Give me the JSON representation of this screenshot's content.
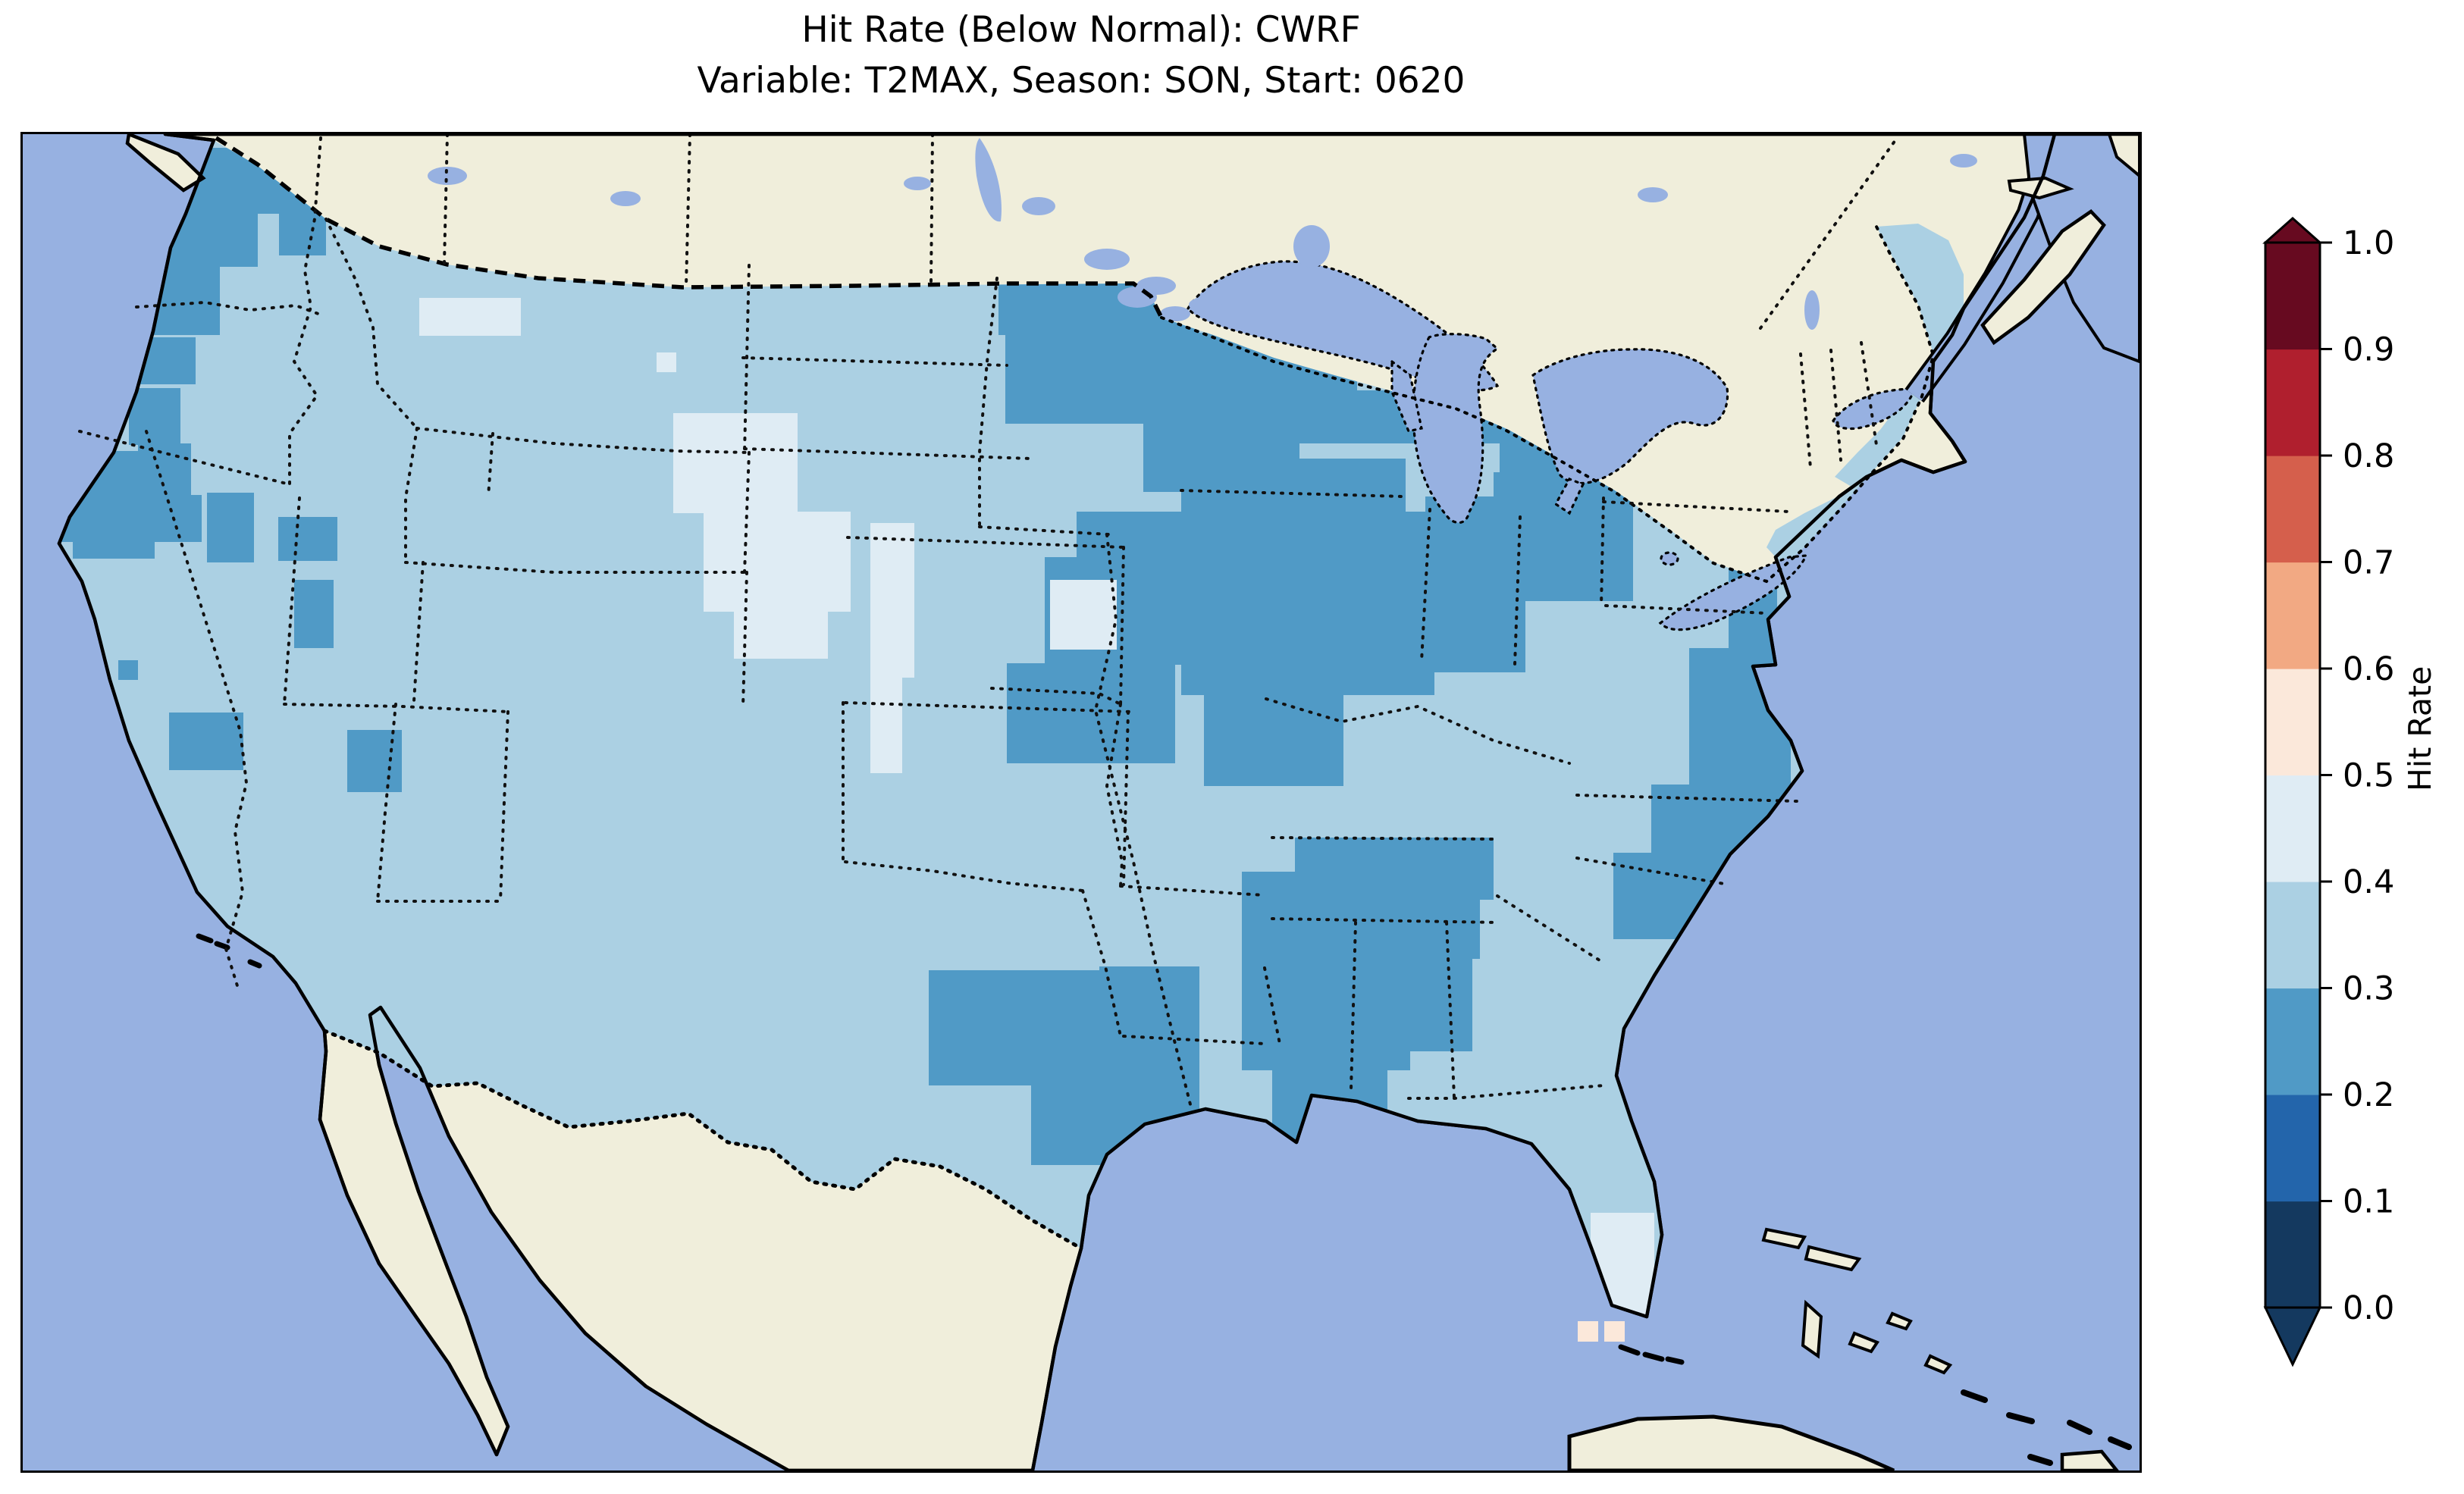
{
  "title": {
    "line1": "Hit Rate (Below Normal): CWRF",
    "line2": "Variable: T2MAX, Season: SON, Start: 0620"
  },
  "colorbar": {
    "label": "Hit Rate",
    "tick_labels": [
      "1.0",
      "0.9",
      "0.8",
      "0.7",
      "0.6",
      "0.5",
      "0.4",
      "0.3",
      "0.2",
      "0.1",
      "0.0"
    ],
    "bin_colors_low_to_high": [
      "#14395f",
      "#2365ab",
      "#509ac6",
      "#abd0e3",
      "#dfecf4",
      "#fbe8da",
      "#f2a983",
      "#d55f4c",
      "#b01f2e",
      "#670a20"
    ],
    "extend_under_color": "#14395f",
    "extend_over_color": "#670a20",
    "outline_color": "#000000"
  },
  "map": {
    "colors": {
      "ocean": "#97b1e1",
      "land_no_data": "#f0eedb",
      "lake": "#97b1e1",
      "coastline": "#000000",
      "state_border": "#111111",
      "base_data_bin": 3
    },
    "patches": [
      {
        "name": "pacific-northwest-coast",
        "bin": 2,
        "value": "0.2-0.3",
        "rects": [
          [
            195,
            18,
            150,
            75
          ],
          [
            185,
            90,
            125,
            85
          ],
          [
            160,
            175,
            100,
            90
          ],
          [
            148,
            268,
            80,
            62
          ]
        ]
      },
      {
        "name": "ne-washington-idaho-panhandle",
        "bin": 2,
        "value": "0.2-0.3",
        "rects": [
          [
            280,
            30,
            118,
            75
          ],
          [
            338,
            105,
            62,
            55
          ]
        ]
      },
      {
        "name": "oregon-coast",
        "bin": 2,
        "value": "0.2-0.3",
        "rects": [
          [
            140,
            335,
            68,
            75
          ],
          [
            152,
            408,
            70,
            85
          ]
        ]
      },
      {
        "name": "northern-california",
        "bin": 2,
        "value": "0.2-0.3",
        "rects": [
          [
            48,
            418,
            138,
            58
          ],
          [
            48,
            476,
            188,
            62
          ],
          [
            66,
            538,
            108,
            22
          ]
        ]
      },
      {
        "name": "ne-nevada",
        "bin": 2,
        "value": "0.2-0.3",
        "rects": [
          [
            243,
            473,
            62,
            92
          ]
        ]
      },
      {
        "name": "nw-utah",
        "bin": 2,
        "value": "0.2-0.3",
        "rects": [
          [
            337,
            505,
            78,
            58
          ]
        ]
      },
      {
        "name": "central-utah",
        "bin": 2,
        "value": "0.2-0.3",
        "rects": [
          [
            358,
            588,
            52,
            90
          ]
        ]
      },
      {
        "name": "southern-sierra-california",
        "bin": 2,
        "value": "0.2-0.3",
        "rects": [
          [
            193,
            763,
            98,
            76
          ]
        ]
      },
      {
        "name": "arizona-new-mexico",
        "bin": 2,
        "value": "0.2-0.3",
        "rects": [
          [
            428,
            786,
            72,
            82
          ]
        ]
      },
      {
        "name": "socal-single-cell",
        "bin": 2,
        "value": "0.2-0.3",
        "rects": [
          [
            126,
            694,
            26,
            26
          ]
        ]
      },
      {
        "name": "upper-midwest-blob",
        "bin": 2,
        "value": "0.2-0.3",
        "rects": [
          [
            1287,
            183,
            180,
            82
          ],
          [
            1296,
            262,
            368,
            120
          ],
          [
            1432,
            188,
            120,
            78
          ],
          [
            1560,
            252,
            200,
            92
          ],
          [
            1618,
            338,
            334,
            70
          ],
          [
            1478,
            340,
            206,
            132
          ],
          [
            1528,
            428,
            296,
            120
          ],
          [
            1948,
            328,
            172,
            120
          ],
          [
            1940,
            446,
            184,
            170
          ],
          [
            1390,
            498,
            464,
            124
          ],
          [
            1348,
            558,
            204,
            142
          ],
          [
            1298,
            698,
            222,
            132
          ],
          [
            1528,
            618,
            334,
            122
          ],
          [
            1558,
            738,
            184,
            122
          ],
          [
            1850,
            478,
            132,
            232
          ]
        ]
      },
      {
        "name": "kentucky-tennessee",
        "bin": 2,
        "value": "0.2-0.3",
        "rects": [
          [
            1678,
            928,
            262,
            82
          ],
          [
            1718,
            1008,
            204,
            80
          ]
        ]
      },
      {
        "name": "ne-texas-arkansas-louisiana",
        "bin": 2,
        "value": "0.2-0.3",
        "rects": [
          [
            1195,
            1103,
            272,
            152
          ],
          [
            1420,
            1098,
            132,
            222
          ],
          [
            1330,
            1248,
            162,
            112
          ]
        ]
      },
      {
        "name": "mississippi-alabama",
        "bin": 2,
        "value": "0.2-0.3",
        "rects": [
          [
            1608,
            973,
            222,
            262
          ],
          [
            1648,
            1233,
            152,
            112
          ],
          [
            1828,
            1058,
            84,
            152
          ]
        ]
      },
      {
        "name": "mid-atlantic-coast",
        "bin": 2,
        "value": "0.2-0.3",
        "rects": [
          [
            2250,
            572,
            64,
            112
          ],
          [
            2198,
            678,
            134,
            184
          ],
          [
            2148,
            858,
            184,
            142
          ],
          [
            2098,
            948,
            124,
            114
          ]
        ]
      },
      {
        "name": "montana-wyoming-light",
        "bin": 4,
        "value": "0.4-0.5",
        "rects": [
          [
            858,
            368,
            164,
            132
          ],
          [
            898,
            498,
            194,
            132
          ],
          [
            938,
            628,
            124,
            64
          ]
        ]
      },
      {
        "name": "north-montana-light",
        "bin": 4,
        "value": "0.4-0.5",
        "rects": [
          [
            523,
            216,
            134,
            50
          ]
        ]
      },
      {
        "name": "west-nebraska-strip",
        "bin": 4,
        "value": "0.4-0.5",
        "rects": [
          [
            1118,
            513,
            58,
            204
          ],
          [
            1118,
            715,
            42,
            128
          ]
        ]
      },
      {
        "name": "central-missouri-light",
        "bin": 4,
        "value": "0.4-0.5",
        "rects": [
          [
            1355,
            588,
            88,
            92
          ]
        ]
      },
      {
        "name": "south-florida-light",
        "bin": 4,
        "value": "0.4-0.5",
        "rects": [
          [
            2068,
            1423,
            84,
            142
          ]
        ]
      },
      {
        "name": "south-dakota-single-cell",
        "bin": 4,
        "value": "0.4-0.5",
        "rects": [
          [
            836,
            288,
            26,
            26
          ]
        ]
      },
      {
        "name": "florida-keys-peach-cells",
        "bin": 5,
        "value": "0.5-0.6",
        "rects": [
          [
            2051,
            1566,
            27,
            27
          ],
          [
            2086,
            1566,
            27,
            27
          ]
        ]
      }
    ]
  },
  "chart_data": {
    "type": "heatmap",
    "subtype": "choropleth_map",
    "title": "Hit Rate (Below Normal): CWRF",
    "subtitle": "Variable: T2MAX, Season: SON, Start: 0620",
    "model": "CWRF",
    "metric": "Hit Rate (Below Normal)",
    "variable": "T2MAX",
    "season": "SON",
    "start": "0620",
    "colorbar_label": "Hit Rate",
    "colorbar_range": [
      0.0,
      1.0
    ],
    "colorbar_tick_step": 0.1,
    "colorbar_extend": "both",
    "legend_position": "right",
    "region_values": [
      {
        "area": "Pacific Northwest coast (W Washington / coastal Oregon)",
        "hit_rate": "0.2-0.3"
      },
      {
        "area": "Interior West (most of OR, ID, NV, MT, CA interior)",
        "hit_rate": "0.3-0.4"
      },
      {
        "area": "Northern California coast ranges",
        "hit_rate": "0.2-0.3"
      },
      {
        "area": "NE Nevada, NW Utah and central Utah patches",
        "hit_rate": "0.2-0.3"
      },
      {
        "area": "Southern Sierra Nevada (CA)",
        "hit_rate": "0.2-0.3"
      },
      {
        "area": "E Arizona / W New Mexico patch",
        "hit_rate": "0.2-0.3"
      },
      {
        "area": "SW Montana / Wyoming",
        "hit_rate": "0.4-0.5"
      },
      {
        "area": "Western Nebraska strip",
        "hit_rate": "0.4-0.5"
      },
      {
        "area": "Dakotas, Kansas, Oklahoma, most of Texas",
        "hit_rate": "0.3-0.4"
      },
      {
        "area": "Upper Midwest (MN, WI, IA, N MO, IL, IN, MI)",
        "hit_rate": "0.2-0.3"
      },
      {
        "area": "Kentucky / Tennessee",
        "hit_rate": "0.2-0.3"
      },
      {
        "area": "NE Texas / Arkansas / N Louisiana",
        "hit_rate": "0.2-0.3"
      },
      {
        "area": "Mississippi / Alabama",
        "hit_rate": "0.2-0.3"
      },
      {
        "area": "Gulf Coast Texas and coastal Louisiana",
        "hit_rate": "0.3-0.4"
      },
      {
        "area": "Ohio Valley and Northeast (NY, PA, New England, Maine)",
        "hit_rate": "0.3-0.4"
      },
      {
        "area": "Mid-Atlantic coast (NJ, Delmarva, E Virginia, E North Carolina)",
        "hit_rate": "0.2-0.3"
      },
      {
        "area": "Southeast (GA, SC, inland NC, N Florida)",
        "hit_rate": "0.3-0.4"
      },
      {
        "area": "South Florida",
        "hit_rate": "0.4-0.5"
      },
      {
        "area": "Two cells SW of the Florida Keys",
        "hit_rate": "0.5-0.6"
      },
      {
        "area": "Central Missouri patch",
        "hit_rate": "0.4-0.5"
      },
      {
        "area": "Canada and Mexico",
        "hit_rate": "no data (land mask)"
      }
    ]
  }
}
